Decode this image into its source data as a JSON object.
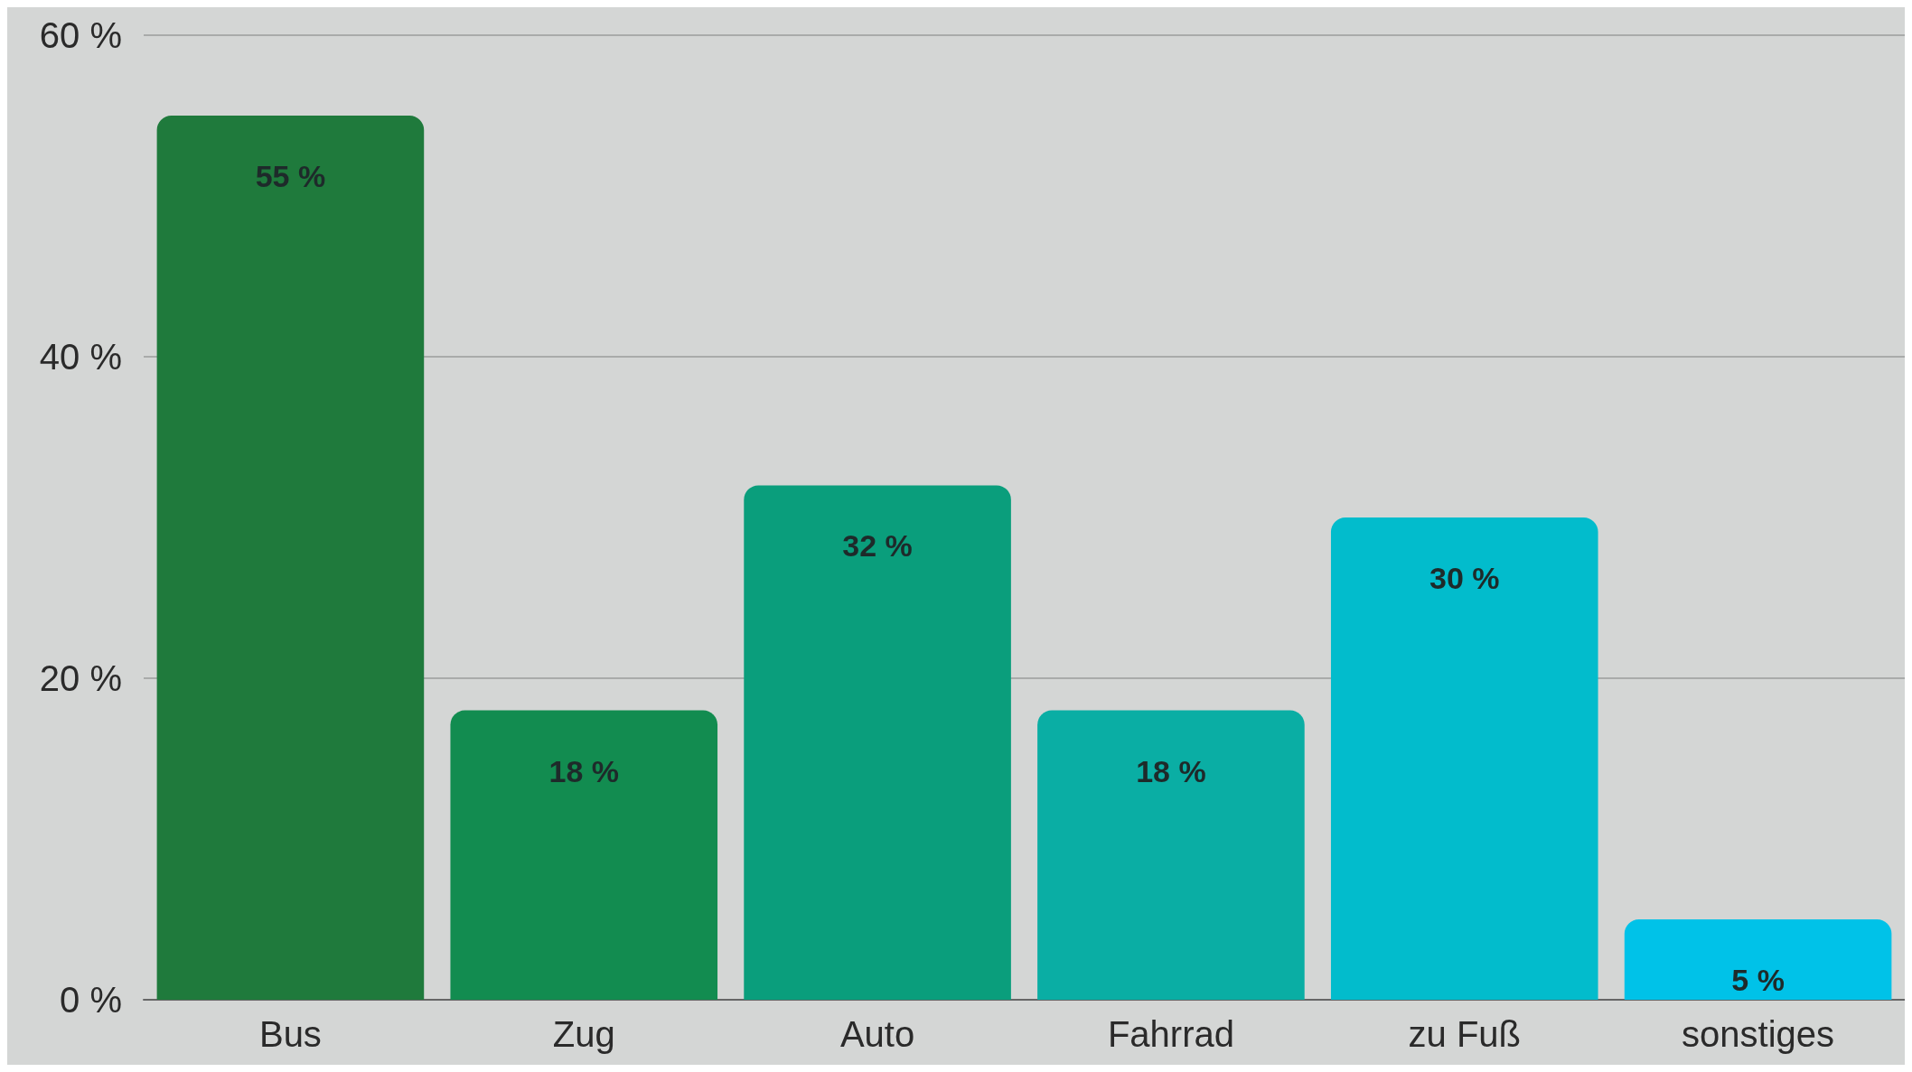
{
  "chart_data": {
    "type": "bar",
    "categories": [
      "Bus",
      "Zug",
      "Auto",
      "Fahrrad",
      "zu Fuß",
      "sonstiges"
    ],
    "values": [
      55,
      18,
      32,
      18,
      30,
      5
    ],
    "colors": [
      "#1f7a3c",
      "#128c50",
      "#0a9e7c",
      "#0aaea4",
      "#02bccc",
      "#00c2e8"
    ],
    "value_labels": [
      "55 %",
      "18 %",
      "32 %",
      "18 %",
      "30 %",
      "5 %"
    ],
    "ylim": [
      0,
      60
    ],
    "yticks": [
      {
        "value": 0,
        "label": "0 %"
      },
      {
        "value": 20,
        "label": "20 %"
      },
      {
        "value": 40,
        "label": "40 %"
      },
      {
        "value": 60,
        "label": "60 %"
      }
    ],
    "grid": "y"
  }
}
